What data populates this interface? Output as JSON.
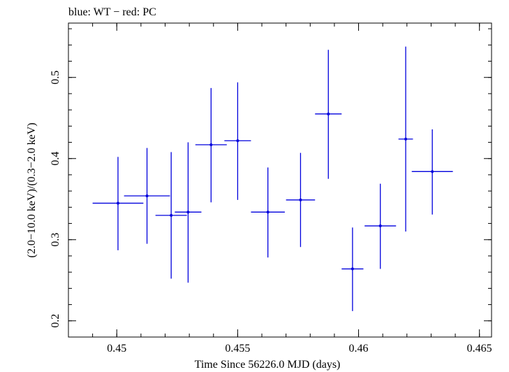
{
  "chart_data": {
    "type": "scatter",
    "title": "blue: WT − red: PC",
    "xlabel": "Time Since 56226.0 MJD (days)",
    "ylabel": "(2.0−10.0 keV)/(0.3−2.0 keV)",
    "xlim": [
      0.448,
      0.4655
    ],
    "ylim": [
      0.18,
      0.567
    ],
    "x_ticks": [
      0.45,
      0.455,
      0.46,
      0.465
    ],
    "x_tick_labels": [
      "0.45",
      "0.455",
      "0.46",
      "0.465"
    ],
    "y_ticks": [
      0.2,
      0.3,
      0.4,
      0.5
    ],
    "y_tick_labels": [
      "0.2",
      "0.3",
      "0.4",
      "0.5"
    ],
    "x_minor_step": 0.001,
    "y_minor_step": 0.02,
    "series": [
      {
        "name": "WT",
        "color": "#0000dd",
        "points": [
          {
            "x": 0.45005,
            "y": 0.345,
            "xerr": 0.00105,
            "ylo": 0.287,
            "yhi": 0.402
          },
          {
            "x": 0.45125,
            "y": 0.354,
            "xerr": 0.00095,
            "ylo": 0.295,
            "yhi": 0.413
          },
          {
            "x": 0.45225,
            "y": 0.33,
            "xerr": 0.00065,
            "ylo": 0.252,
            "yhi": 0.408
          },
          {
            "x": 0.45295,
            "y": 0.334,
            "xerr": 0.00055,
            "ylo": 0.247,
            "yhi": 0.42
          },
          {
            "x": 0.4539,
            "y": 0.417,
            "xerr": 0.00065,
            "ylo": 0.346,
            "yhi": 0.487
          },
          {
            "x": 0.455,
            "y": 0.422,
            "xerr": 0.00055,
            "ylo": 0.349,
            "yhi": 0.494
          },
          {
            "x": 0.45625,
            "y": 0.334,
            "xerr": 0.0007,
            "ylo": 0.278,
            "yhi": 0.389
          },
          {
            "x": 0.4576,
            "y": 0.349,
            "xerr": 0.0006,
            "ylo": 0.291,
            "yhi": 0.407
          },
          {
            "x": 0.45875,
            "y": 0.455,
            "xerr": 0.00055,
            "ylo": 0.375,
            "yhi": 0.534
          },
          {
            "x": 0.45975,
            "y": 0.264,
            "xerr": 0.00045,
            "ylo": 0.212,
            "yhi": 0.315
          },
          {
            "x": 0.4609,
            "y": 0.317,
            "xerr": 0.00065,
            "ylo": 0.264,
            "yhi": 0.369
          },
          {
            "x": 0.46195,
            "y": 0.424,
            "xerr": 0.0003,
            "ylo": 0.31,
            "yhi": 0.538
          },
          {
            "x": 0.46305,
            "y": 0.384,
            "xerr": 0.00085,
            "ylo": 0.331,
            "yhi": 0.436
          }
        ]
      }
    ]
  }
}
